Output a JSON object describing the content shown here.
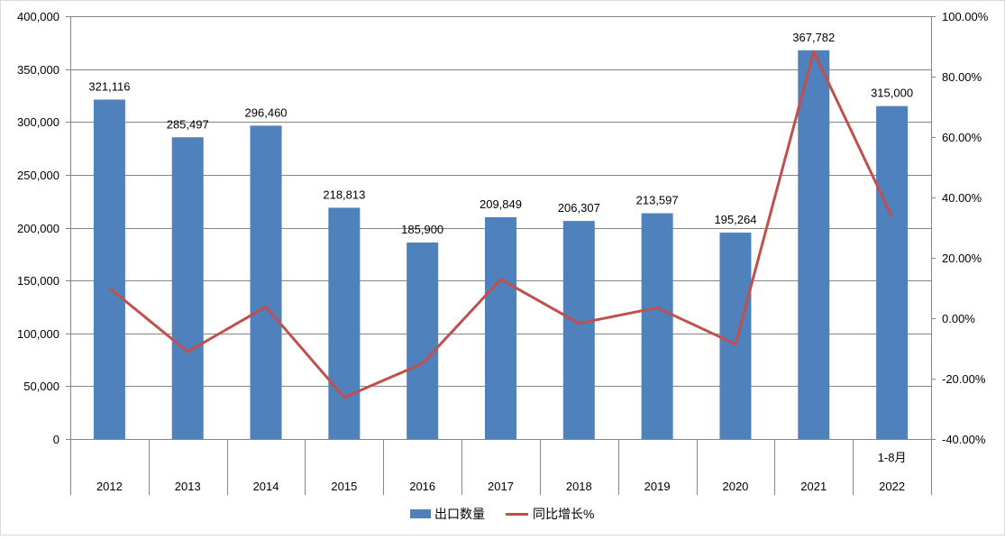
{
  "chart_data": {
    "type": "bar",
    "categories": [
      "2012",
      "2013",
      "2014",
      "2015",
      "2016",
      "2017",
      "2018",
      "2019",
      "2020",
      "2021",
      "2022"
    ],
    "category_sublabels": [
      "",
      "",
      "",
      "",
      "",
      "",
      "",
      "",
      "",
      "",
      "1-8月"
    ],
    "series": [
      {
        "name": "出口数量",
        "type": "bar",
        "axis": "left",
        "values": [
          321116,
          285497,
          296460,
          218813,
          185900,
          209849,
          206307,
          213597,
          195264,
          367782,
          315000
        ],
        "data_labels": [
          "321,116",
          "285,497",
          "296,460",
          "218,813",
          "185,900",
          "209,849",
          "206,307",
          "213,597",
          "195,264",
          "367,782",
          "315,000"
        ]
      },
      {
        "name": "同比增长%",
        "type": "line",
        "axis": "right",
        "values": [
          10.0,
          -11.1,
          3.8,
          -26.2,
          -15.0,
          12.9,
          -1.7,
          3.5,
          -8.6,
          88.3,
          33.6
        ]
      }
    ],
    "y_left": {
      "ylim": [
        0,
        400000
      ],
      "ticks": [
        0,
        50000,
        100000,
        150000,
        200000,
        250000,
        300000,
        350000,
        400000
      ],
      "tick_labels": [
        "0",
        "50,000",
        "100,000",
        "150,000",
        "200,000",
        "250,000",
        "300,000",
        "350,000",
        "400,000"
      ]
    },
    "y_right": {
      "ylim": [
        -40,
        100
      ],
      "ticks": [
        -40,
        -20,
        0,
        20,
        40,
        60,
        80,
        100
      ],
      "tick_labels": [
        "-40.00%",
        "-20.00%",
        "0.00%",
        "20.00%",
        "40.00%",
        "60.00%",
        "80.00%",
        "100.00%"
      ]
    },
    "grid": true,
    "legend_position": "bottom",
    "colors": {
      "bar": "#4f81bd",
      "line": "#c0504d",
      "grid": "#868686",
      "axis": "#868686"
    }
  }
}
